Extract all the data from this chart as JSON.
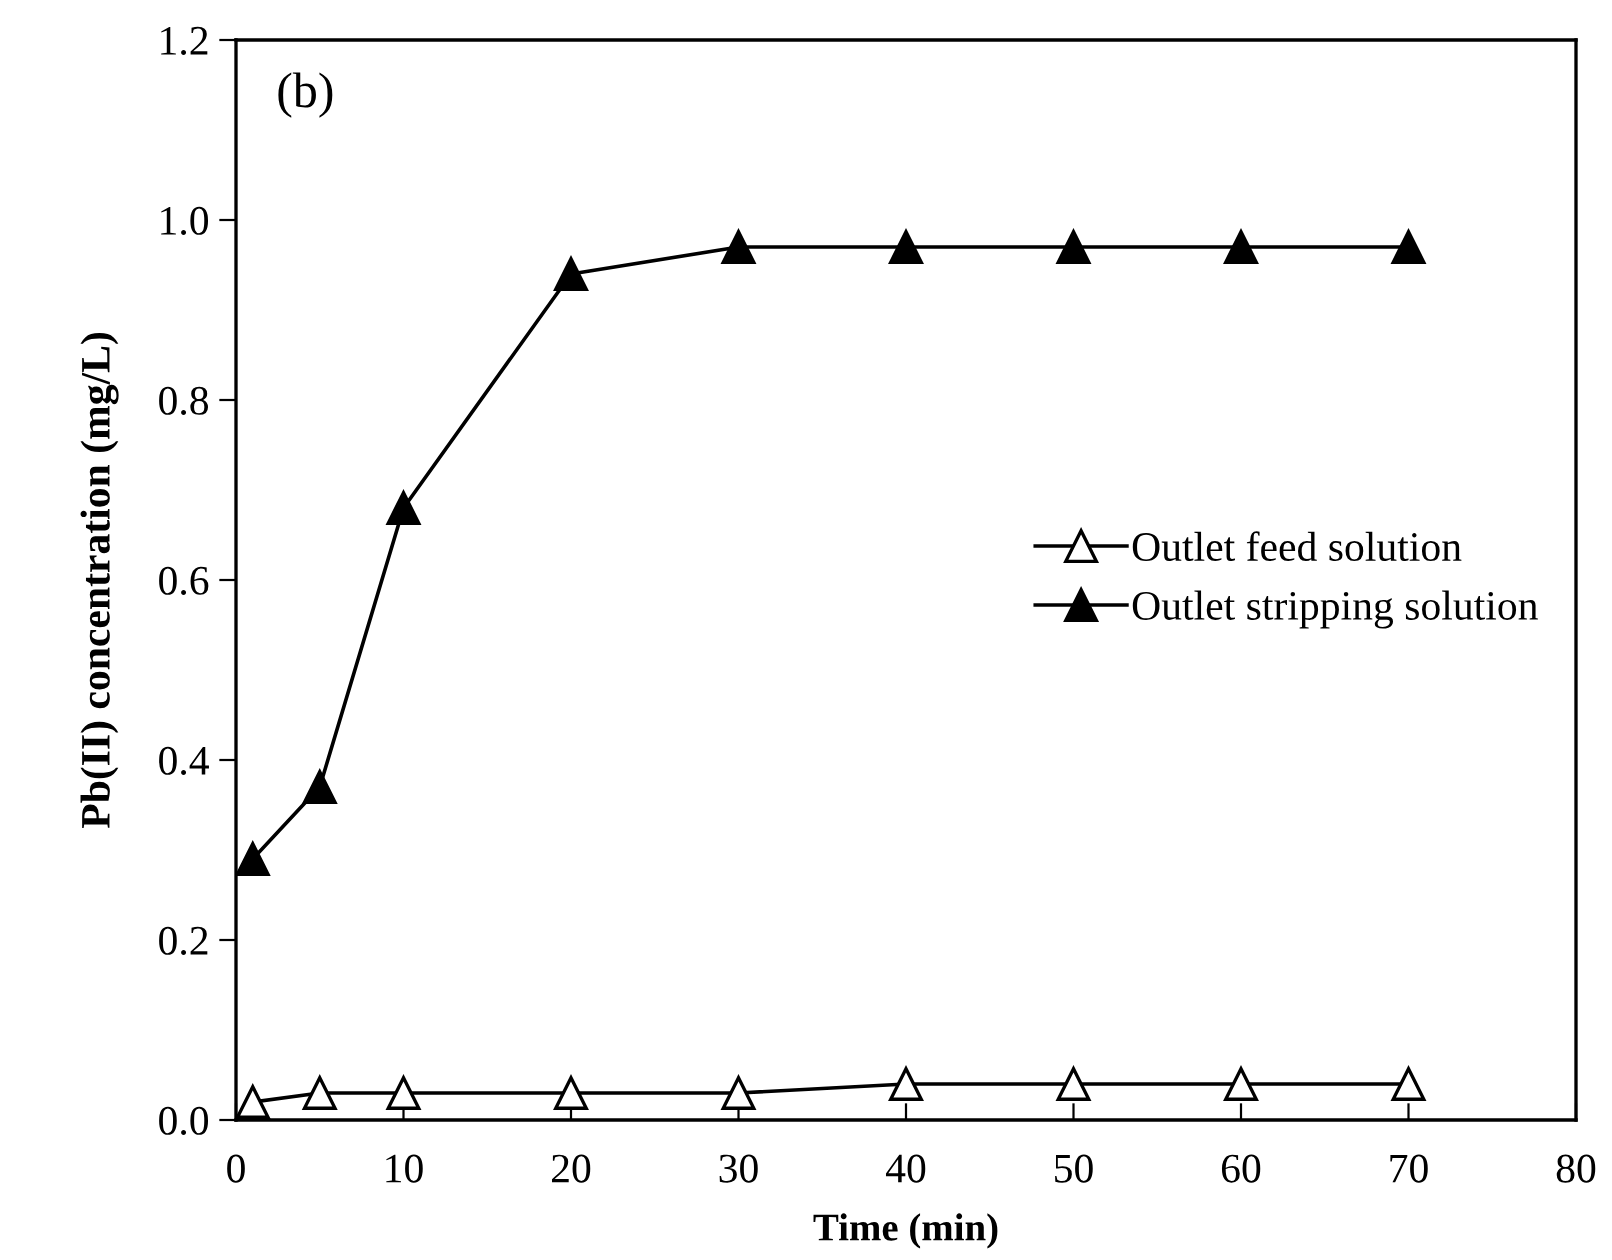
{
  "chart_data": {
    "type": "line",
    "xlabel": "Time (min)",
    "ylabel": "Pb(II) concentration (mg/L)",
    "annotations": [
      "(b)"
    ],
    "x": [
      1,
      5,
      10,
      20,
      30,
      40,
      50,
      60,
      70
    ],
    "series": [
      {
        "name": "Outlet feed solution",
        "color": "#000000",
        "marker": "triangle",
        "colors": [
          "#ffffff",
          "#ffffff",
          "#ffffff",
          "#ffffff",
          "#ffffff",
          "#ffffff",
          "#ffffff",
          "#ffffff",
          "#ffffff"
        ],
        "values": [
          0.02,
          0.03,
          0.03,
          0.03,
          0.03,
          0.04,
          0.04,
          0.04,
          0.04
        ]
      },
      {
        "name": "Outlet stripping solution",
        "color": "#000000",
        "marker": "triangle",
        "values": [
          0.29,
          0.37,
          0.68,
          0.94,
          0.97,
          0.97,
          0.97,
          0.97,
          0.97
        ]
      }
    ],
    "xlim": [
      0,
      80
    ],
    "xticks": [
      0,
      10,
      20,
      30,
      40,
      50,
      60,
      70,
      80
    ],
    "ylim": [
      0,
      1.2
    ],
    "yticks": [
      {
        "value": 0,
        "label": "0.0"
      },
      {
        "value": 0.2,
        "label": "0.2"
      },
      {
        "value": 0.4,
        "label": "0.4"
      },
      {
        "value": 0.6,
        "label": "0.6"
      },
      {
        "value": 0.8,
        "label": "0.8"
      },
      {
        "value": 1.0,
        "label": "1.0"
      },
      {
        "value": 1.2,
        "label": "1.2"
      }
    ],
    "grid": false,
    "legend": "right",
    "line_style": "solid"
  }
}
